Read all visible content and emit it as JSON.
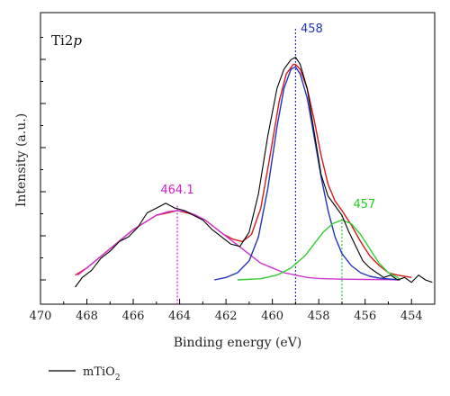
{
  "chart_data": {
    "type": "line",
    "panel_label": "Ti2p",
    "xlabel": "Binding energy (eV)",
    "ylabel": "Intensity (a.u.)",
    "xlim": [
      470,
      453
    ],
    "x_reversed": true,
    "x_ticks": [
      470,
      468,
      466,
      464,
      462,
      460,
      458,
      456,
      454
    ],
    "y_ticks_labeled": false,
    "ylim": [
      0,
      100
    ],
    "series": [
      {
        "color": "#000000",
        "role": "measured",
        "x": [
          468.5,
          468.2,
          467.8,
          467.4,
          467.0,
          466.6,
          466.2,
          465.8,
          465.4,
          465.0,
          464.6,
          464.2,
          463.8,
          463.4,
          463.0,
          462.6,
          462.2,
          461.8,
          461.4,
          461.0,
          460.6,
          460.2,
          459.8,
          459.5,
          459.2,
          459.0,
          458.8,
          458.5,
          458.2,
          457.9,
          457.6,
          457.3,
          457.0,
          456.7,
          456.4,
          456.1,
          455.8,
          455.5,
          455.2,
          454.9,
          454.6,
          454.3,
          454.0,
          453.7,
          453.4,
          453.1
        ],
        "y": [
          -3,
          1,
          4,
          9,
          12,
          16,
          18,
          22,
          28,
          30,
          32,
          30,
          29,
          27,
          25,
          21,
          18,
          15,
          14,
          20,
          36,
          60,
          80,
          88,
          92,
          93,
          90,
          80,
          62,
          44,
          35,
          31,
          27,
          20,
          14,
          8,
          5,
          3,
          1,
          2,
          0,
          1,
          -1,
          2,
          0,
          -1
        ]
      },
      {
        "name": "",
        "color": "#d7191c",
        "role": "envelope",
        "x": [
          468.5,
          468.0,
          467.5,
          467.0,
          466.5,
          466.0,
          465.5,
          465.0,
          464.5,
          464.1,
          463.7,
          463.3,
          462.9,
          462.5,
          462.1,
          461.7,
          461.3,
          460.9,
          460.5,
          460.1,
          459.7,
          459.4,
          459.1,
          459.0,
          458.8,
          458.5,
          458.2,
          457.9,
          457.6,
          457.3,
          457.0,
          456.6,
          456.2,
          455.8,
          455.4,
          455.0,
          454.6,
          454.0
        ],
        "y": [
          2,
          5,
          9,
          13,
          17,
          21,
          24,
          27,
          28,
          29,
          28,
          27,
          25,
          22,
          19,
          17,
          16,
          19,
          30,
          52,
          75,
          86,
          90,
          90,
          88,
          80,
          67,
          52,
          40,
          33,
          29,
          23,
          16,
          10,
          6,
          3,
          2,
          1
        ]
      },
      {
        "name": "",
        "color": "#cc33cc",
        "role": "fit 464.1",
        "x": [
          468.4,
          468.0,
          467.5,
          467.0,
          466.5,
          466.0,
          465.5,
          465.0,
          464.5,
          464.1,
          463.7,
          463.3,
          462.9,
          462.5,
          462.1,
          461.7,
          461.3,
          460.9,
          460.5,
          460.0,
          459.5,
          459.0,
          458.5,
          458.0,
          457.0,
          456.0,
          455.0,
          454.5
        ],
        "y": [
          2,
          5,
          9,
          13,
          17,
          21,
          24,
          27,
          28.5,
          29,
          28.5,
          27,
          25,
          22,
          19,
          16,
          13,
          10,
          7,
          5,
          3,
          2,
          1,
          0.6,
          0.3,
          0.2,
          0.1,
          0
        ]
      },
      {
        "name": "",
        "color": "#2233bb",
        "role": "fit 458",
        "x": [
          462.5,
          462.0,
          461.5,
          461.0,
          460.6,
          460.2,
          459.8,
          459.5,
          459.2,
          459.0,
          458.8,
          458.5,
          458.2,
          457.9,
          457.6,
          457.3,
          457.0,
          456.6,
          456.2,
          455.8,
          455.4,
          455.0,
          454.6,
          454.5
        ],
        "y": [
          0,
          1,
          3,
          8,
          18,
          38,
          64,
          80,
          88,
          89,
          86,
          76,
          60,
          43,
          29,
          18,
          11,
          6,
          3,
          1.5,
          0.8,
          0.4,
          0.1,
          0
        ]
      },
      {
        "name": "",
        "color": "#33cc33",
        "role": "fit 457",
        "x": [
          461.5,
          460.5,
          459.8,
          459.2,
          458.6,
          458.2,
          457.8,
          457.4,
          457.0,
          456.6,
          456.2,
          455.8,
          455.4,
          455.0,
          454.6,
          454.5
        ],
        "y": [
          0,
          0.5,
          2,
          5,
          10,
          15,
          20,
          23.5,
          25,
          23.5,
          19,
          13,
          7,
          3,
          1,
          0
        ]
      }
    ],
    "annotations": [
      {
        "text": "464.1",
        "x": 464.1,
        "color": "#d11fd1"
      },
      {
        "text": "458",
        "x": 459.0,
        "color": "#2233bb"
      },
      {
        "text": "457",
        "x": 457.0,
        "color": "#22cc22"
      }
    ],
    "legend": {
      "placement": "bottom-left",
      "entries": [
        {
          "label": "mTiO",
          "subscript": "2",
          "color": "#000000"
        }
      ]
    }
  }
}
